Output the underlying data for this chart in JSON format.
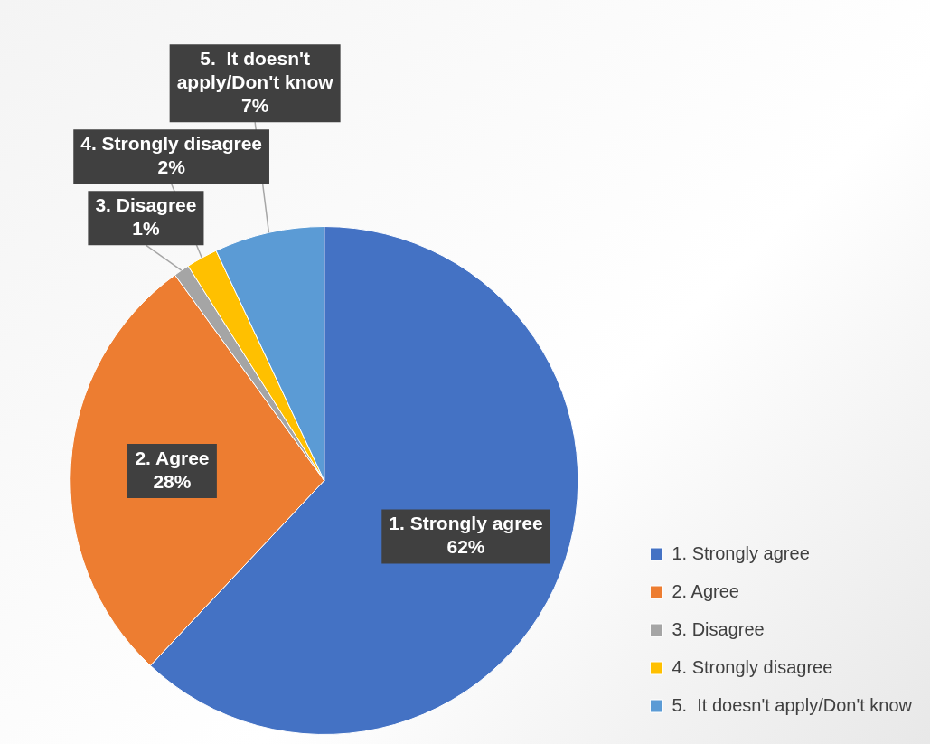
{
  "chart_data": {
    "type": "pie",
    "categories": [
      "1. Strongly agree",
      "2. Agree",
      "3. Disagree",
      "4. Strongly disagree",
      "5.  It doesn't apply/Don't know"
    ],
    "values": [
      62,
      28,
      1,
      2,
      7
    ],
    "value_labels": [
      "62%",
      "28%",
      "1%",
      "2%",
      "7%"
    ],
    "colors": [
      "#4472c4",
      "#ed7d31",
      "#a5a5a5",
      "#ffc000",
      "#5b9bd5"
    ],
    "legend": "bottom right"
  }
}
